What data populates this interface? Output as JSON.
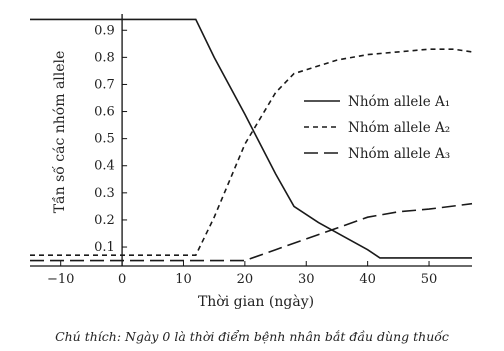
{
  "chart_data": {
    "type": "line",
    "title": "",
    "xlabel": "Thời gian (ngày)",
    "ylabel": "Tần số các nhóm allele",
    "caption": "Chú thích: Ngày 0 là thời điểm bệnh nhân bắt đầu dùng thuốc",
    "xlim": [
      -15,
      57
    ],
    "ylim": [
      0.03,
      0.96
    ],
    "xticks": [
      -10,
      0,
      10,
      20,
      30,
      40,
      50
    ],
    "xtick_labels": [
      "−10",
      "0",
      "10",
      "20",
      "30",
      "40",
      "50"
    ],
    "yticks": [
      0.1,
      0.2,
      0.3,
      0.4,
      0.5,
      0.6,
      0.7,
      0.8,
      0.9
    ],
    "ytick_labels": [
      "0.1",
      "0.2",
      "0.3",
      "0.4",
      "0.5",
      "0.6",
      "0.7",
      "0.8",
      "0.9"
    ],
    "grid": false,
    "legend_position": "right",
    "series": [
      {
        "name": "Nhóm allele A₁",
        "style": "solid",
        "x": [
          -15,
          12,
          15,
          20,
          25,
          28,
          32,
          36,
          40,
          42,
          50,
          57
        ],
        "y": [
          0.94,
          0.94,
          0.8,
          0.59,
          0.37,
          0.25,
          0.19,
          0.14,
          0.09,
          0.06,
          0.06,
          0.06
        ]
      },
      {
        "name": "Nhóm allele A₂",
        "style": "dashed",
        "x": [
          -15,
          12,
          15,
          20,
          25,
          28,
          35,
          40,
          45,
          50,
          54,
          57
        ],
        "y": [
          0.07,
          0.07,
          0.21,
          0.48,
          0.67,
          0.74,
          0.79,
          0.81,
          0.82,
          0.83,
          0.83,
          0.82
        ]
      },
      {
        "name": "Nhóm allele A₃",
        "style": "longdash",
        "x": [
          -15,
          20,
          25,
          30,
          35,
          40,
          45,
          50,
          57
        ],
        "y": [
          0.05,
          0.05,
          0.09,
          0.13,
          0.17,
          0.21,
          0.23,
          0.24,
          0.26
        ]
      }
    ]
  }
}
